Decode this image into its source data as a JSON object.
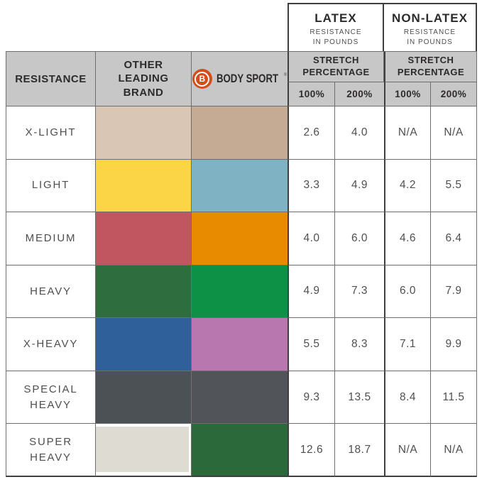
{
  "table": {
    "col_headers": {
      "resistance": "RESISTANCE",
      "other_brand": "OTHER\nLEADING\nBRAND"
    },
    "logo": {
      "b": "B",
      "name": "BODY SPORT",
      "registered": "®"
    },
    "groups": [
      {
        "title": "LATEX",
        "subtitle": "RESISTANCE\nIN POUNDS",
        "stretch_label": "STRETCH\nPERCENTAGE",
        "cols": [
          "100%",
          "200%"
        ]
      },
      {
        "title": "NON-LATEX",
        "subtitle": "RESISTANCE\nIN POUNDS",
        "stretch_label": "STRETCH\nPERCENTAGE",
        "cols": [
          "100%",
          "200%"
        ]
      }
    ],
    "rows": [
      {
        "label": "X-LIGHT",
        "olb_color": "#d9c6b5",
        "bs_color": "#c5aa94",
        "values": [
          "2.6",
          "4.0",
          "N/A",
          "N/A"
        ]
      },
      {
        "label": "LIGHT",
        "olb_color": "#fbd545",
        "bs_color": "#7fb3c3",
        "values": [
          "3.3",
          "4.9",
          "4.2",
          "5.5"
        ]
      },
      {
        "label": "MEDIUM",
        "olb_color": "#c25660",
        "bs_color": "#e98b01",
        "values": [
          "4.0",
          "6.0",
          "4.6",
          "6.4"
        ]
      },
      {
        "label": "HEAVY",
        "olb_color": "#2e6e3e",
        "bs_color": "#0d9147",
        "values": [
          "4.9",
          "7.3",
          "6.0",
          "7.9"
        ]
      },
      {
        "label": "X-HEAVY",
        "olb_color": "#30609a",
        "bs_color": "#b877af",
        "values": [
          "5.5",
          "8.3",
          "7.1",
          "9.9"
        ]
      },
      {
        "label": "SPECIAL\nHEAVY",
        "olb_color": "#4b5154",
        "bs_color": "#515559",
        "values": [
          "9.3",
          "13.5",
          "8.4",
          "11.5"
        ]
      },
      {
        "label": "SUPER\nHEAVY",
        "olb_color": "#dedbd2",
        "bs_color": "#2b693b",
        "values": [
          "12.6",
          "18.7",
          "N/A",
          "N/A"
        ]
      }
    ],
    "colors": {
      "logo_orange": "#d24e1d",
      "header_gray": "#c7c7c7",
      "border_gray": "#6e6e6e",
      "border_dark": "#3f3f3f"
    }
  },
  "chart_data": {
    "type": "table",
    "title": "Body Sport vs Other Leading Brand resistance band comparison",
    "columns": [
      "RESISTANCE",
      "OTHER LEADING BRAND",
      "BODY SPORT",
      "LATEX 100%",
      "LATEX 200%",
      "NON-LATEX 100%",
      "NON-LATEX 200%"
    ],
    "units": "RESISTANCE IN POUNDS at STRETCH PERCENTAGE",
    "rows": [
      [
        "X-LIGHT",
        "#d9c6b5",
        "#c5aa94",
        2.6,
        4.0,
        null,
        null
      ],
      [
        "LIGHT",
        "#fbd545",
        "#7fb3c3",
        3.3,
        4.9,
        4.2,
        5.5
      ],
      [
        "MEDIUM",
        "#c25660",
        "#e98b01",
        4.0,
        6.0,
        4.6,
        6.4
      ],
      [
        "HEAVY",
        "#2e6e3e",
        "#0d9147",
        4.9,
        7.3,
        6.0,
        7.9
      ],
      [
        "X-HEAVY",
        "#30609a",
        "#b877af",
        5.5,
        8.3,
        7.1,
        9.9
      ],
      [
        "SPECIAL HEAVY",
        "#4b5154",
        "#515559",
        9.3,
        13.5,
        8.4,
        11.5
      ],
      [
        "SUPER HEAVY",
        "#dedbd2",
        "#2b693b",
        12.6,
        18.7,
        null,
        null
      ]
    ]
  }
}
